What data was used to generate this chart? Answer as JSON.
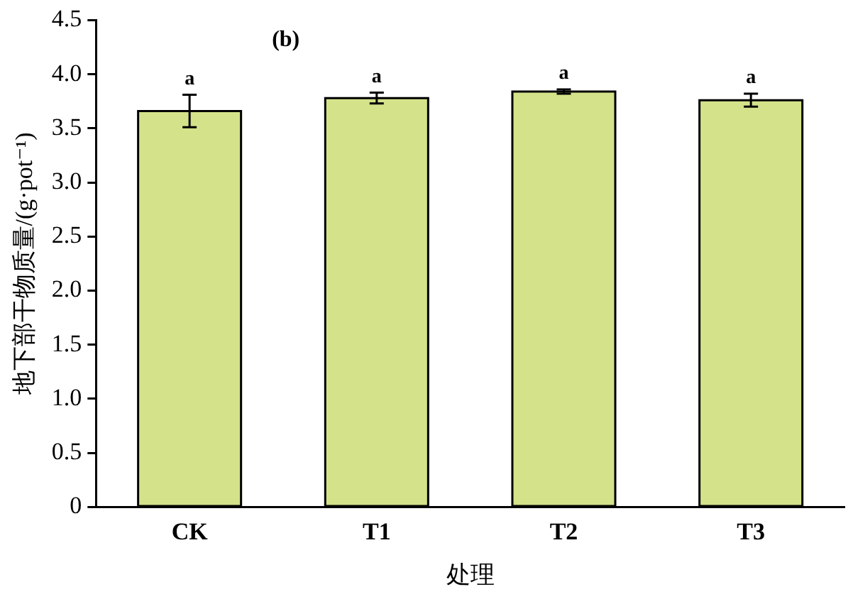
{
  "chart_data": {
    "type": "bar",
    "xlabel": "处理",
    "ylabel": "地下部干物质量/(g·pot⁻¹)",
    "categories": [
      "CK",
      "T1",
      "T2",
      "T3"
    ],
    "values": [
      3.66,
      3.78,
      3.84,
      3.76
    ],
    "errors": [
      0.15,
      0.05,
      0.02,
      0.06
    ],
    "color": "#d4e38a",
    "ylim": [
      0,
      4.5
    ],
    "yticks": [
      0,
      0.5,
      {
        "value": 1,
        "label": "1.0"
      },
      1.5,
      {
        "value": 2,
        "label": "2.0"
      },
      2.5,
      {
        "value": 3,
        "label": "3.0"
      },
      3.5,
      {
        "value": 4,
        "label": "4.0"
      },
      4.5
    ],
    "grid": false,
    "legend": false,
    "annotations": [
      "(b)",
      "a",
      "a",
      "a",
      "a"
    ]
  }
}
